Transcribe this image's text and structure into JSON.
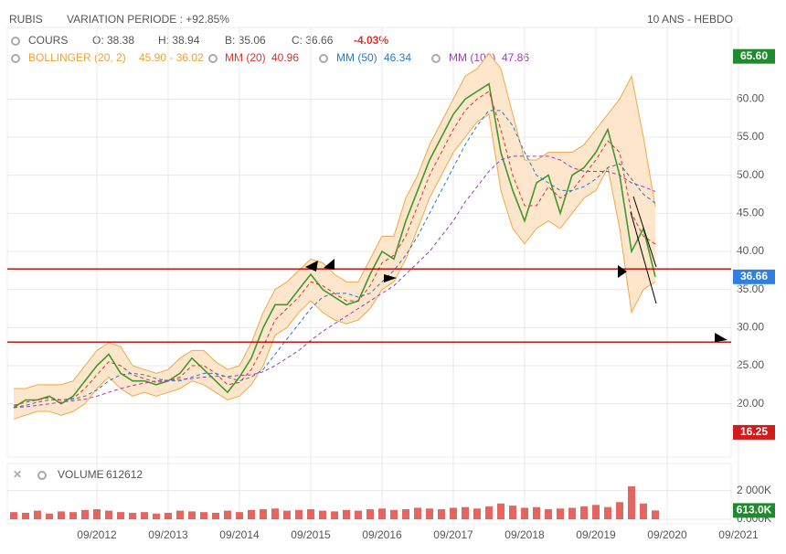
{
  "header": {
    "ticker": "RUBIS",
    "variation": "VARIATION PERIODE : +92.85%",
    "period": "10 ANS - HEBDO"
  },
  "chart_data": {
    "type": "stock",
    "legend": {
      "ohlc": [
        "O: 38.38",
        "H: 38.94",
        "B: 35.06",
        "C: 36.66"
      ],
      "change": "-4.03%"
    },
    "categories": [
      null,
      null,
      null,
      null,
      null,
      null,
      null,
      "09/2012",
      null,
      null,
      null,
      null,
      null,
      "09/2013",
      null,
      null,
      null,
      null,
      null,
      "09/2014",
      null,
      null,
      null,
      null,
      null,
      "09/2015",
      null,
      null,
      null,
      null,
      null,
      "09/2016",
      null,
      null,
      null,
      null,
      null,
      "09/2017",
      null,
      null,
      null,
      null,
      null,
      "09/2018",
      null,
      null,
      null,
      null,
      null,
      "09/2019",
      null,
      null,
      null,
      null,
      null,
      "09/2020",
      null,
      null,
      null,
      null,
      null,
      "09/2021"
    ],
    "ylim": [
      13,
      67
    ],
    "yticks": [
      {
        "value": 20,
        "label": "20.00"
      },
      {
        "value": 25,
        "label": "25.00"
      },
      {
        "value": 30,
        "label": "30.00"
      },
      {
        "value": 35,
        "label": "35.00"
      },
      {
        "value": 40,
        "label": "40.00"
      },
      {
        "value": 45,
        "label": "45.00"
      },
      {
        "value": 50,
        "label": "50.00"
      },
      {
        "value": 55,
        "label": "55.00"
      },
      {
        "value": 60,
        "label": "60.00"
      }
    ],
    "grid": true,
    "bollinger": {
      "name": "BOLLINGER (20, 2)",
      "label": "45.90 - 36.02",
      "color": "#f0a848",
      "fill": "#fde6cc",
      "upper": [
        22,
        22,
        22.5,
        22.5,
        22.5,
        23,
        25,
        27,
        28,
        27.5,
        25,
        24.5,
        24,
        24.5,
        26,
        27,
        27,
        25.5,
        24.5,
        25,
        28,
        32,
        35,
        36,
        37.5,
        39,
        38.5,
        37,
        36,
        36,
        39,
        42,
        42,
        47,
        50,
        54,
        57,
        60,
        63,
        64,
        66,
        64,
        58,
        52,
        52,
        53,
        53,
        53,
        54,
        56,
        58,
        60,
        63,
        55,
        45.9,
        null,
        null,
        null,
        null,
        null,
        null,
        null
      ],
      "lower": [
        18,
        18.5,
        19,
        19,
        18.5,
        19,
        20,
        22,
        23.5,
        22,
        21,
        21.5,
        21,
        21.5,
        22,
        23,
        22.5,
        21.5,
        20.5,
        21,
        22.5,
        25,
        29,
        30,
        32,
        33.5,
        32,
        31,
        30.5,
        31,
        32.5,
        35,
        36,
        39,
        43,
        47,
        50,
        53,
        55,
        57,
        58,
        48,
        43,
        41,
        43,
        44,
        43,
        45,
        47,
        48,
        51,
        43,
        32,
        35,
        36.02,
        null,
        null,
        null,
        null,
        null,
        null,
        null
      ]
    },
    "series": [
      {
        "name": "COURS",
        "color": "#3c9a2c",
        "dash": false,
        "values": [
          19.5,
          20.5,
          20.5,
          21,
          20,
          21,
          23,
          25,
          26.5,
          24,
          23,
          23,
          22.5,
          23,
          24,
          26,
          24.5,
          23,
          21.5,
          23.5,
          26,
          30,
          33,
          33,
          35,
          37,
          35,
          34,
          33,
          33.5,
          37,
          40,
          39,
          44,
          48,
          52,
          55,
          58,
          60,
          61,
          62,
          53,
          48,
          44,
          49,
          50,
          45,
          50,
          51,
          53,
          56,
          50,
          40,
          43,
          36.66,
          null,
          null,
          null,
          null,
          null,
          null,
          null
        ]
      },
      {
        "name": "MM (20)",
        "label": "40.96",
        "color": "#d9342b",
        "dash": true,
        "values": [
          19.8,
          20.2,
          20.5,
          20.8,
          20.5,
          20.7,
          22,
          23.8,
          25.5,
          25,
          23.8,
          23.3,
          22.8,
          23,
          23.5,
          25,
          25,
          24,
          22.5,
          22.8,
          24.5,
          27.5,
          31,
          32.5,
          34,
          36,
          35.5,
          34.5,
          33.5,
          33.5,
          35.5,
          38.5,
          39.5,
          42,
          46,
          50,
          53,
          56,
          58.5,
          60,
          61,
          56,
          50,
          46,
          46,
          48.5,
          47,
          48,
          50,
          52,
          54.5,
          53,
          45,
          42,
          40.96,
          null,
          null,
          null,
          null,
          null,
          null,
          null
        ]
      },
      {
        "name": "MM (50)",
        "label": "46.34",
        "color": "#2a7ac0",
        "dash": true,
        "values": [
          19.5,
          19.8,
          20.2,
          20.5,
          20.5,
          20.6,
          21,
          21.8,
          23,
          23.8,
          24,
          23.8,
          23.3,
          23,
          23,
          23.5,
          24,
          24,
          23.5,
          23,
          23.5,
          24.5,
          26.5,
          28.5,
          30.5,
          32.5,
          34,
          34.5,
          34.5,
          34,
          34.5,
          36,
          37.5,
          39.5,
          42,
          45,
          48,
          51,
          54,
          56.5,
          58.5,
          58.5,
          56.5,
          53,
          50,
          49,
          48,
          48,
          48.5,
          49.5,
          51,
          51.5,
          49.5,
          47.5,
          46.34,
          null,
          null,
          null,
          null,
          null,
          null,
          null
        ]
      },
      {
        "name": "MM (100)",
        "label": "47.86",
        "color": "#a03cb0",
        "dash": true,
        "values": [
          19.5,
          19.6,
          19.8,
          20,
          20.2,
          20.4,
          20.6,
          21,
          21.5,
          22,
          22.4,
          22.7,
          23,
          23.1,
          23.2,
          23.3,
          23.5,
          23.6,
          23.6,
          23.7,
          23.8,
          24.2,
          25,
          26,
          27,
          28.3,
          29.5,
          30.5,
          31.5,
          32.5,
          33.5,
          34.5,
          35.5,
          37,
          38.5,
          40,
          42,
          44,
          46.5,
          48.5,
          50.5,
          52,
          52.5,
          52.5,
          52.5,
          52.5,
          52,
          51,
          50.5,
          50.5,
          50.5,
          50,
          49,
          48.5,
          47.86,
          null,
          null,
          null,
          null,
          null,
          null,
          null
        ]
      }
    ],
    "hlines": [
      37.7,
      28.1
    ],
    "hline_color": "#c00000",
    "badges": [
      {
        "value": 65.6,
        "label": "65.60",
        "color": "#1e8c2e"
      },
      {
        "value": 36.66,
        "label": "36.66",
        "color": "#2f7fe0"
      },
      {
        "value": 16.25,
        "label": "16.25",
        "color": "#d01c1c"
      }
    ],
    "volume": {
      "name": "VOLUME",
      "label": "612612",
      "color": "#d9342b",
      "values": [
        500,
        450,
        600,
        400,
        550,
        500,
        650,
        700,
        600,
        500,
        450,
        500,
        400,
        450,
        600,
        550,
        500,
        450,
        600,
        500,
        650,
        700,
        750,
        600,
        650,
        700,
        600,
        550,
        650,
        600,
        700,
        750,
        650,
        700,
        800,
        750,
        700,
        800,
        850,
        750,
        900,
        1100,
        950,
        800,
        850,
        700,
        750,
        800,
        900,
        1000,
        850,
        1200,
        2300,
        1100,
        613,
        null,
        null,
        null,
        null,
        null,
        null,
        null
      ],
      "ylim": [
        0,
        3700
      ],
      "yticks": [
        {
          "value": 0,
          "label": "0.000K"
        },
        {
          "value": 2000,
          "label": "2 000K"
        }
      ],
      "badge": {
        "value": 613,
        "label": "613.0K",
        "color": "#1e8c2e"
      }
    }
  }
}
